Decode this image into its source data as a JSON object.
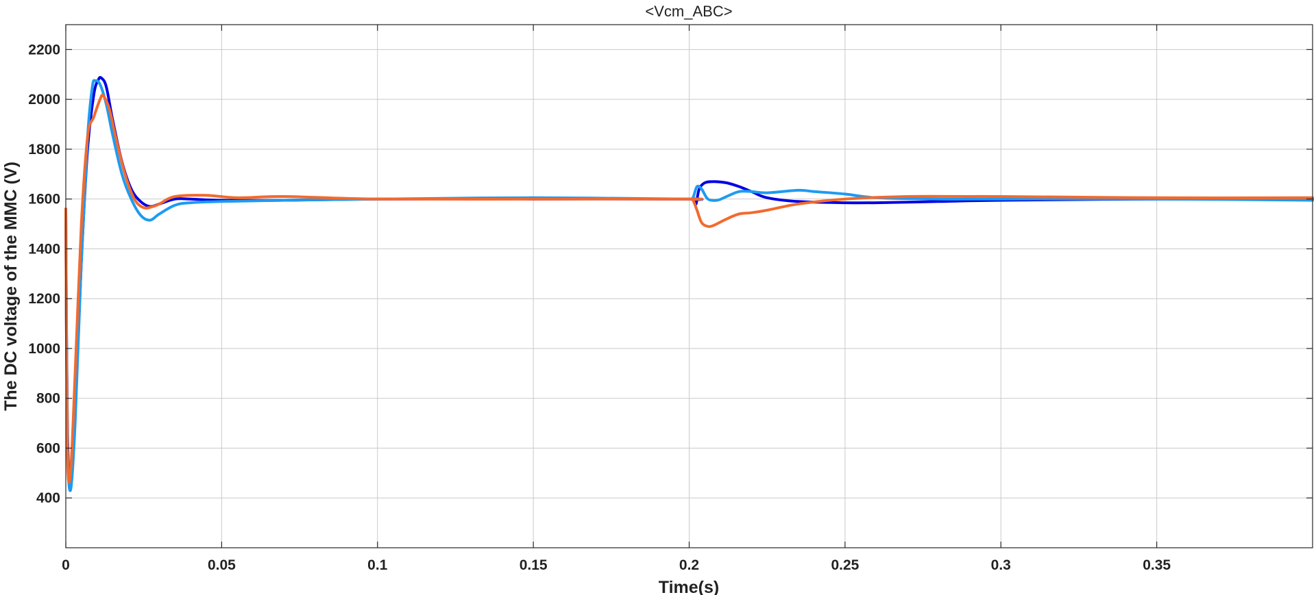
{
  "chart_data": {
    "type": "line",
    "title": "<Vcm_ABC>",
    "xlabel": "Time(s)",
    "ylabel": "The DC voltage of the MMC (V)",
    "xlim": [
      0,
      0.4
    ],
    "ylim": [
      200,
      2300
    ],
    "xticks": [
      0,
      0.05,
      0.1,
      0.15,
      0.2,
      0.25,
      0.3,
      0.35
    ],
    "xtick_labels": [
      "0",
      "0.05",
      "0.1",
      "0.15",
      "0.2",
      "0.25",
      "0.3",
      "0.35"
    ],
    "yticks": [
      400,
      600,
      800,
      1000,
      1200,
      1400,
      1600,
      1800,
      2000,
      2200
    ],
    "ytick_labels": [
      "400",
      "600",
      "800",
      "1000",
      "1200",
      "1400",
      "1600",
      "1800",
      "2000",
      "2200"
    ],
    "grid": true,
    "colors": [
      "#0000e6",
      "#1e9bf0",
      "#f26a2e"
    ],
    "series": [
      {
        "x": [
          0,
          0.0005,
          0.0015,
          0.003,
          0.005,
          0.007,
          0.009,
          0.0105,
          0.0115,
          0.013,
          0.015,
          0.018,
          0.021,
          0.024,
          0.027,
          0.03,
          0.035,
          0.04,
          0.05,
          0.07,
          0.1,
          0.15,
          0.2,
          0.2015,
          0.2022,
          0.2032,
          0.205,
          0.208,
          0.212,
          0.216,
          0.22,
          0.225,
          0.235,
          0.25,
          0.26,
          0.28,
          0.3,
          0.35,
          0.4
        ],
        "values": [
          1560,
          700,
          450,
          750,
          1350,
          1800,
          2020,
          2080,
          2085,
          2050,
          1920,
          1750,
          1640,
          1590,
          1570,
          1580,
          1600,
          1600,
          1595,
          1595,
          1600,
          1600,
          1600,
          1595,
          1580,
          1640,
          1665,
          1670,
          1665,
          1650,
          1630,
          1605,
          1590,
          1585,
          1585,
          1590,
          1595,
          1600,
          1600
        ]
      },
      {
        "x": [
          0,
          0.0005,
          0.0015,
          0.003,
          0.005,
          0.007,
          0.0085,
          0.0095,
          0.011,
          0.013,
          0.015,
          0.018,
          0.021,
          0.024,
          0.027,
          0.03,
          0.035,
          0.04,
          0.05,
          0.07,
          0.1,
          0.15,
          0.2,
          0.2012,
          0.2025,
          0.204,
          0.206,
          0.209,
          0.212,
          0.216,
          0.22,
          0.225,
          0.235,
          0.24,
          0.25,
          0.26,
          0.28,
          0.3,
          0.35,
          0.4
        ],
        "values": [
          1550,
          650,
          430,
          700,
          1350,
          1850,
          2050,
          2075,
          2060,
          1980,
          1860,
          1700,
          1600,
          1535,
          1515,
          1540,
          1575,
          1585,
          1590,
          1595,
          1600,
          1605,
          1600,
          1605,
          1650,
          1640,
          1600,
          1595,
          1610,
          1630,
          1630,
          1625,
          1635,
          1630,
          1620,
          1605,
          1600,
          1600,
          1600,
          1595
        ]
      },
      {
        "x": [
          0,
          0.0005,
          0.0015,
          0.003,
          0.005,
          0.007,
          0.009,
          0.011,
          0.012,
          0.014,
          0.016,
          0.019,
          0.022,
          0.025,
          0.028,
          0.03,
          0.035,
          0.045,
          0.055,
          0.07,
          0.1,
          0.15,
          0.2,
          0.2012,
          0.2025,
          0.204,
          0.206,
          0.208,
          0.212,
          0.216,
          0.22,
          0.225,
          0.235,
          0.25,
          0.27,
          0.29,
          0.3,
          0.35,
          0.4
        ],
        "values": [
          1560,
          600,
          500,
          900,
          1500,
          1850,
          1930,
          2000,
          2015,
          1960,
          1850,
          1700,
          1600,
          1565,
          1570,
          1580,
          1610,
          1615,
          1605,
          1610,
          1600,
          1600,
          1600,
          1595,
          1555,
          1505,
          1490,
          1495,
          1520,
          1540,
          1545,
          1555,
          1580,
          1600,
          1610,
          1610,
          1610,
          1605,
          1605
        ]
      }
    ]
  }
}
